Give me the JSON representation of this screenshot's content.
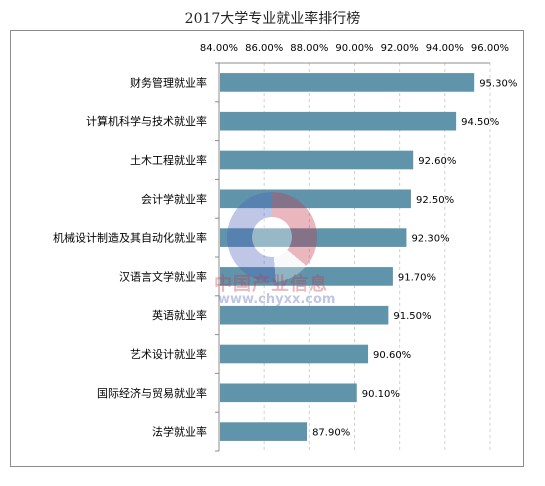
{
  "chart_data": {
    "type": "bar",
    "orientation": "horizontal",
    "title": "2017大学专业就业率排行榜",
    "categories": [
      "财务管理就业率",
      "计算机科学与技术就业率",
      "土木工程就业率",
      "会计学就业率",
      "机械设计制造及其自动化就业率",
      "汉语言文学就业率",
      "英语就业率",
      "艺术设计就业率",
      "国际经济与贸易就业率",
      "法学就业率"
    ],
    "values": [
      95.3,
      94.5,
      92.6,
      92.5,
      92.3,
      91.7,
      91.5,
      90.6,
      90.1,
      87.9
    ],
    "value_labels": [
      "95.30%",
      "94.50%",
      "92.60%",
      "92.50%",
      "92.30%",
      "91.70%",
      "91.50%",
      "90.60%",
      "90.10%",
      "87.90%"
    ],
    "xlim": [
      84,
      96
    ],
    "x_ticks": [
      84,
      86,
      88,
      90,
      92,
      94,
      96
    ],
    "x_tick_labels": [
      "84.00%",
      "86.00%",
      "88.00%",
      "90.00%",
      "92.00%",
      "94.00%",
      "96.00%"
    ],
    "x_axis_position": "top",
    "grid": true,
    "legend": "none",
    "bar_color": "#5f94aa"
  },
  "watermark": {
    "brand": "中国产业信息",
    "url": "www.chyxx.com"
  }
}
